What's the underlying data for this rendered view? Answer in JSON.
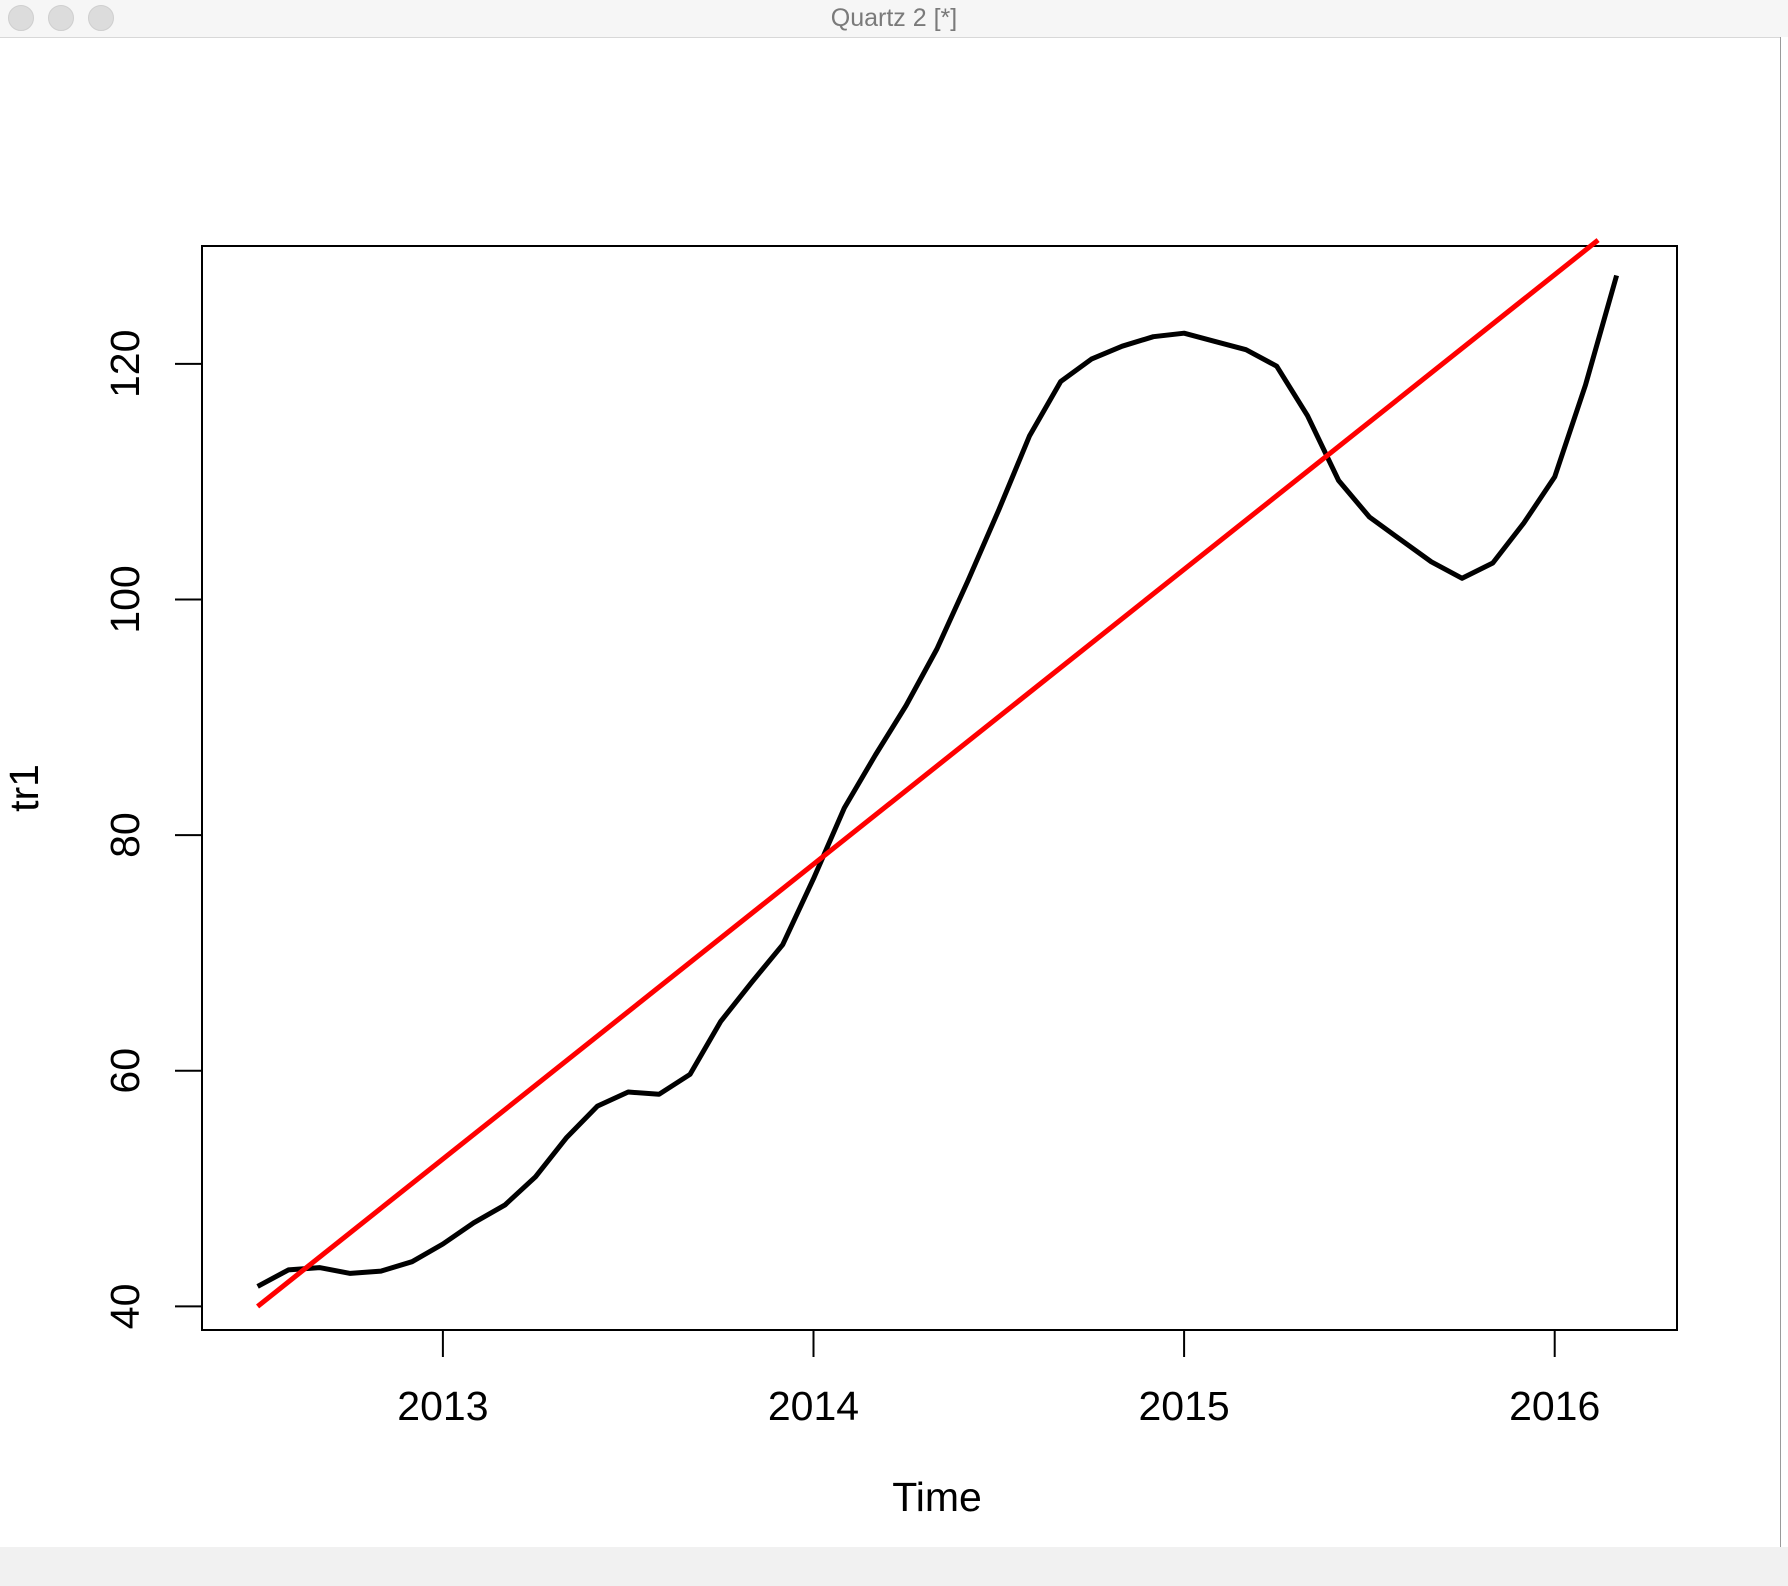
{
  "window": {
    "title": "Quartz 2 [*]"
  },
  "chart_data": {
    "type": "line",
    "title": "",
    "xlabel": "Time",
    "ylabel": "tr1",
    "xlim": [
      2012.35,
      2016.33
    ],
    "ylim": [
      38,
      130
    ],
    "x_ticks": [
      2013,
      2014,
      2015,
      2016
    ],
    "y_ticks": [
      40,
      60,
      80,
      100,
      120
    ],
    "x_tick_labels": [
      "2013",
      "2014",
      "2015",
      "2016"
    ],
    "y_tick_labels": [
      "40",
      "60",
      "80",
      "100",
      "120"
    ],
    "grid": false,
    "legend": "none",
    "series": [
      {
        "color": "#000000",
        "x": [
          2012.5,
          2012.583,
          2012.667,
          2012.75,
          2012.833,
          2012.917,
          2013.0,
          2013.083,
          2013.167,
          2013.25,
          2013.333,
          2013.417,
          2013.5,
          2013.583,
          2013.667,
          2013.75,
          2013.833,
          2013.917,
          2014.0,
          2014.083,
          2014.167,
          2014.25,
          2014.333,
          2014.417,
          2014.5,
          2014.583,
          2014.667,
          2014.75,
          2014.833,
          2014.917,
          2015.0,
          2015.083,
          2015.167,
          2015.25,
          2015.333,
          2015.417,
          2015.5,
          2015.583,
          2015.667,
          2015.75,
          2015.833,
          2015.917,
          2016.0,
          2016.083,
          2016.167
        ],
        "values": [
          41.7,
          43.1,
          43.3,
          42.8,
          43.0,
          43.8,
          45.3,
          47.1,
          48.6,
          51.0,
          54.3,
          57.0,
          58.2,
          58.0,
          59.7,
          64.2,
          67.5,
          70.7,
          76.3,
          82.3,
          86.8,
          91.0,
          95.8,
          101.6,
          107.6,
          113.9,
          118.5,
          120.4,
          121.5,
          122.3,
          122.6,
          121.9,
          121.2,
          119.8,
          115.6,
          110.1,
          107.0,
          105.1,
          103.2,
          101.8,
          103.1,
          106.5,
          110.4,
          118.2,
          127.5
        ]
      },
      {
        "color": "#ff0000",
        "x": [
          2012.5,
          2016.117
        ],
        "values": [
          40.0,
          130.5
        ]
      }
    ]
  }
}
